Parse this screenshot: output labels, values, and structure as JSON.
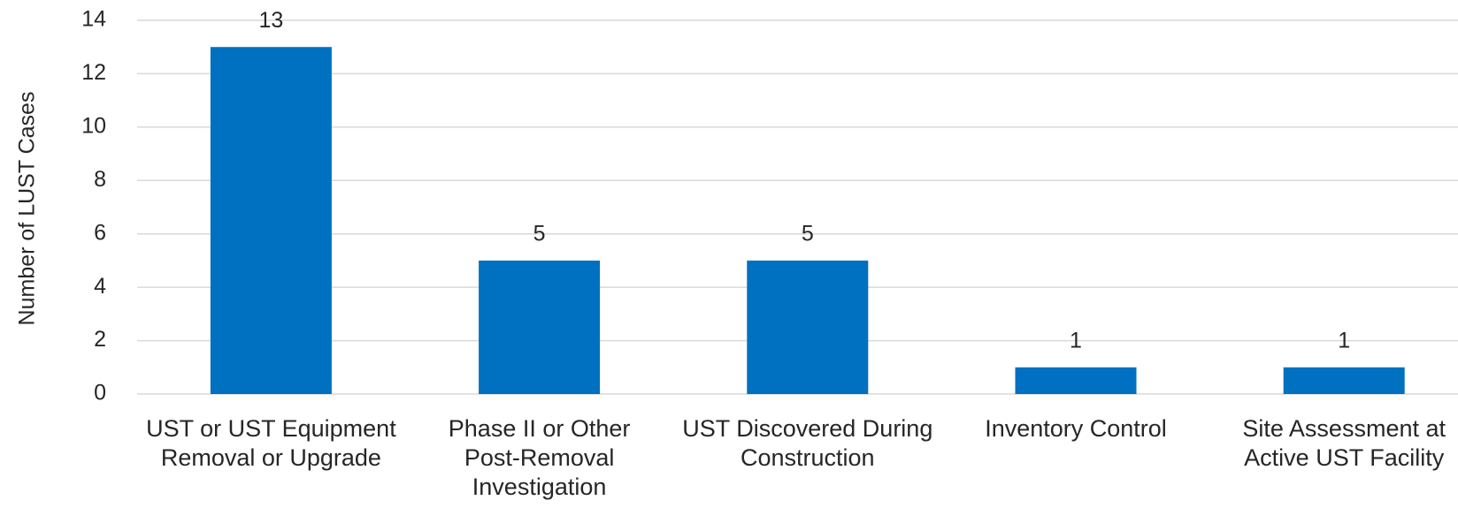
{
  "chart_data": {
    "type": "bar",
    "y_label": "Number of LUST Cases",
    "categories": [
      "UST or UST Equipment Removal or Upgrade",
      "Phase II or Other Post-Removal Investigation",
      "UST Discovered During Construction",
      "Inventory Control",
      "Site Assessment at Active UST Facility"
    ],
    "values": [
      13,
      5,
      5,
      1,
      1
    ],
    "color": "#0070c0",
    "ylim": [
      0,
      14
    ],
    "yticks": [
      0,
      2,
      4,
      6,
      8,
      10,
      12,
      14
    ],
    "grid": true
  }
}
